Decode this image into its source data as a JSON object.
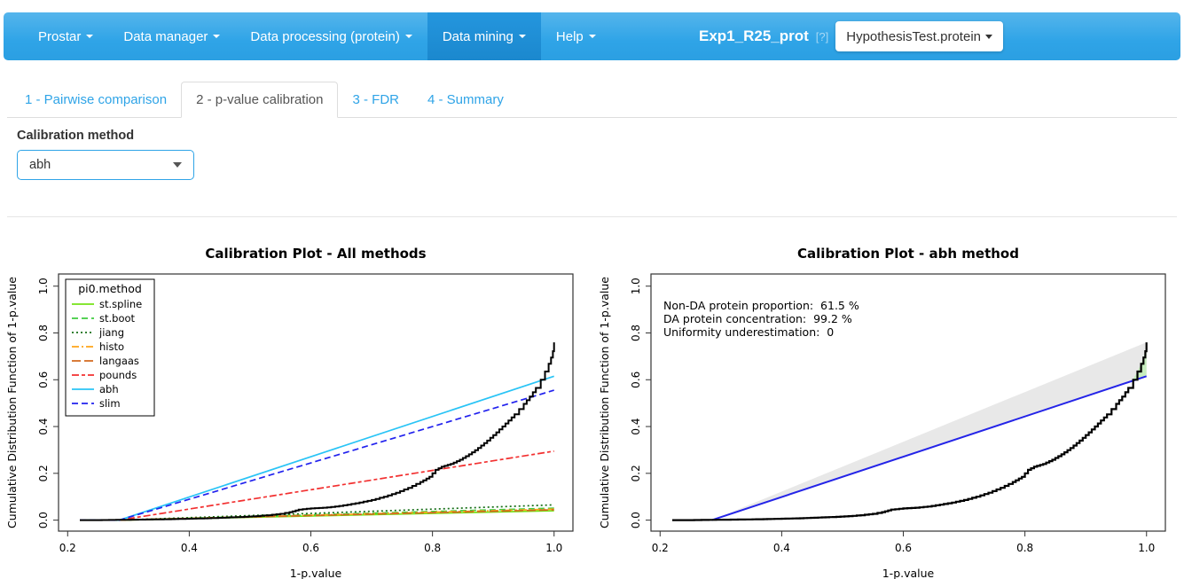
{
  "navbar": {
    "items": [
      {
        "label": "Prostar"
      },
      {
        "label": "Data manager"
      },
      {
        "label": "Data processing (protein)"
      },
      {
        "label": "Data mining"
      },
      {
        "label": "Help"
      }
    ],
    "dataset_label": "Exp1_R25_prot",
    "help_badge": "[?]",
    "doc_selector": "HypothesisTest.protein"
  },
  "tabs": {
    "items": [
      "1 - Pairwise comparison",
      "2 - p-value calibration",
      "3 - FDR",
      "4 - Summary"
    ],
    "active": "2 - p-value calibration"
  },
  "calibration": {
    "label": "Calibration method",
    "value": "abh"
  },
  "colors": {
    "navbar_main": "#2FA4E7",
    "navbar_active": "#1E90D6",
    "link_blue": "#2FA4E7",
    "tab_active_text": "#555555",
    "select_border": "#2FA4E7"
  },
  "chart_data": [
    {
      "type": "line",
      "title": "Calibration Plot - All methods",
      "xlabel": "1-p.value",
      "ylabel": "Cumulative Distribution Function of 1-p.value",
      "xlim": [
        0.2,
        1.0
      ],
      "ylim": [
        0.0,
        1.0
      ],
      "xticks": [
        0.2,
        0.4,
        0.6,
        0.8,
        1.0
      ],
      "yticks": [
        0.0,
        0.2,
        0.4,
        0.6,
        0.8,
        1.0
      ],
      "grid": false,
      "legend": {
        "title": "pi0.method",
        "position": "top-left",
        "entries": [
          {
            "label": "st.spline",
            "color": "#74E317",
            "dash": "solid"
          },
          {
            "label": "st.boot",
            "color": "#3FCC3F",
            "dash": "dashed"
          },
          {
            "label": "jiang",
            "color": "#156E15",
            "dash": "dotted"
          },
          {
            "label": "histo",
            "color": "#FFA519",
            "dash": "dashdot"
          },
          {
            "label": "langaas",
            "color": "#D2691E",
            "dash": "longdash"
          },
          {
            "label": "pounds",
            "color": "#F23030",
            "dash": "twodash"
          },
          {
            "label": "abh",
            "color": "#29C4F6",
            "dash": "solid"
          },
          {
            "label": "slim",
            "color": "#2222EE",
            "dash": "dashed"
          }
        ]
      },
      "series": [
        {
          "name": "st.spline",
          "color": "#74E317",
          "dash": "solid",
          "points": [
            [
              0.22,
              0
            ],
            [
              0.285,
              0
            ],
            [
              1.0,
              0.04
            ]
          ]
        },
        {
          "name": "st.boot",
          "color": "#3FCC3F",
          "dash": "dashed",
          "points": [
            [
              0.22,
              0
            ],
            [
              0.285,
              0
            ],
            [
              1.0,
              0.051
            ]
          ]
        },
        {
          "name": "jiang",
          "color": "#156E15",
          "dash": "dotted",
          "points": [
            [
              0.22,
              0
            ],
            [
              0.285,
              0
            ],
            [
              1.0,
              0.065
            ]
          ]
        },
        {
          "name": "histo",
          "color": "#FFA519",
          "dash": "dashdot",
          "points": [
            [
              0.22,
              0
            ],
            [
              0.285,
              0
            ],
            [
              1.0,
              0.047
            ]
          ]
        },
        {
          "name": "langaas",
          "color": "#D2691E",
          "dash": "longdash",
          "points": [
            [
              0.22,
              0
            ],
            [
              0.285,
              0
            ],
            [
              1.0,
              0.044
            ]
          ]
        },
        {
          "name": "pounds",
          "color": "#F23030",
          "dash": "twodash",
          "points": [
            [
              0.22,
              0
            ],
            [
              0.285,
              0
            ],
            [
              1.0,
              0.295
            ]
          ]
        },
        {
          "name": "abh",
          "color": "#29C4F6",
          "dash": "solid",
          "points": [
            [
              0.22,
              0
            ],
            [
              0.285,
              0
            ],
            [
              1.0,
              0.615
            ]
          ]
        },
        {
          "name": "slim",
          "color": "#2222EE",
          "dash": "dashed",
          "points": [
            [
              0.22,
              0
            ],
            [
              0.285,
              0
            ],
            [
              1.0,
              0.555
            ]
          ]
        },
        {
          "name": "ecdf-1-p.value",
          "color": "#000000",
          "dash": "solid",
          "width": 2,
          "step": true,
          "points": [
            [
              0.22,
              0
            ],
            [
              0.25,
              0
            ],
            [
              0.28,
              0.001
            ],
            [
              0.31,
              0.002
            ],
            [
              0.34,
              0.003
            ],
            [
              0.37,
              0.004
            ],
            [
              0.4,
              0.006
            ],
            [
              0.43,
              0.008
            ],
            [
              0.46,
              0.011
            ],
            [
              0.49,
              0.014
            ],
            [
              0.51,
              0.017
            ],
            [
              0.53,
              0.021
            ],
            [
              0.55,
              0.027
            ],
            [
              0.565,
              0.034
            ],
            [
              0.58,
              0.045
            ],
            [
              0.6,
              0.05
            ],
            [
              0.62,
              0.053
            ],
            [
              0.64,
              0.058
            ],
            [
              0.66,
              0.066
            ],
            [
              0.68,
              0.075
            ],
            [
              0.7,
              0.086
            ],
            [
              0.72,
              0.1
            ],
            [
              0.74,
              0.117
            ],
            [
              0.76,
              0.138
            ],
            [
              0.78,
              0.163
            ],
            [
              0.795,
              0.185
            ],
            [
              0.805,
              0.215
            ],
            [
              0.815,
              0.228
            ],
            [
              0.83,
              0.24
            ],
            [
              0.845,
              0.258
            ],
            [
              0.86,
              0.281
            ],
            [
              0.875,
              0.308
            ],
            [
              0.89,
              0.34
            ],
            [
              0.905,
              0.375
            ],
            [
              0.92,
              0.413
            ],
            [
              0.935,
              0.452
            ],
            [
              0.95,
              0.497
            ],
            [
              0.96,
              0.528
            ],
            [
              0.97,
              0.565
            ],
            [
              0.978,
              0.6
            ],
            [
              0.985,
              0.635
            ],
            [
              0.991,
              0.668
            ],
            [
              0.995,
              0.695
            ],
            [
              0.998,
              0.722
            ],
            [
              1.0,
              0.76
            ]
          ]
        }
      ]
    },
    {
      "type": "line",
      "title": "Calibration Plot - abh method",
      "xlabel": "1-p.value",
      "ylabel": "Cumulative Distribution Function of 1-p.value",
      "xlim": [
        0.2,
        1.0
      ],
      "ylim": [
        0.0,
        1.0
      ],
      "xticks": [
        0.2,
        0.4,
        0.6,
        0.8,
        1.0
      ],
      "yticks": [
        0.0,
        0.2,
        0.4,
        0.6,
        0.8,
        1.0
      ],
      "grid": false,
      "annotations": [
        {
          "text": "Non-DA protein proportion:  61.5 %",
          "color": "#2424DC"
        },
        {
          "text": "DA protein concentration:  99.2 %",
          "color": "#1E8B1E"
        },
        {
          "text": "Uniformity underestimation:  0",
          "color": "#EE2222"
        }
      ],
      "regions": [
        {
          "name": "uniformity-gap-area",
          "color": "#E8E8E8",
          "polygon": [
            [
              0.285,
              0
            ],
            [
              1.0,
              0.76
            ],
            [
              1.0,
              0.617
            ]
          ]
        },
        {
          "name": "da-concentration-area",
          "color": "#C7EDBE",
          "polygon": [
            [
              0.976,
              0.594
            ],
            [
              0.985,
              0.635
            ],
            [
              0.991,
              0.668
            ],
            [
              0.995,
              0.695
            ],
            [
              0.998,
              0.722
            ],
            [
              1.0,
              0.76
            ],
            [
              1.0,
              0.615
            ]
          ]
        }
      ],
      "series": [
        {
          "name": "abh-pi0-line",
          "color": "#2424E8",
          "dash": "solid",
          "width": 2,
          "points": [
            [
              0.285,
              0
            ],
            [
              1.0,
              0.615
            ]
          ]
        },
        {
          "name": "ecdf-1-p.value",
          "color": "#000000",
          "dash": "solid",
          "width": 2.2,
          "step": true,
          "points": [
            [
              0.22,
              0
            ],
            [
              0.25,
              0
            ],
            [
              0.28,
              0.001
            ],
            [
              0.31,
              0.002
            ],
            [
              0.34,
              0.003
            ],
            [
              0.37,
              0.004
            ],
            [
              0.4,
              0.006
            ],
            [
              0.43,
              0.008
            ],
            [
              0.46,
              0.011
            ],
            [
              0.49,
              0.014
            ],
            [
              0.51,
              0.017
            ],
            [
              0.53,
              0.021
            ],
            [
              0.55,
              0.027
            ],
            [
              0.565,
              0.034
            ],
            [
              0.58,
              0.045
            ],
            [
              0.6,
              0.05
            ],
            [
              0.62,
              0.053
            ],
            [
              0.64,
              0.058
            ],
            [
              0.66,
              0.066
            ],
            [
              0.68,
              0.075
            ],
            [
              0.7,
              0.086
            ],
            [
              0.72,
              0.1
            ],
            [
              0.74,
              0.117
            ],
            [
              0.76,
              0.138
            ],
            [
              0.78,
              0.163
            ],
            [
              0.795,
              0.185
            ],
            [
              0.805,
              0.215
            ],
            [
              0.815,
              0.228
            ],
            [
              0.83,
              0.24
            ],
            [
              0.845,
              0.258
            ],
            [
              0.86,
              0.281
            ],
            [
              0.875,
              0.308
            ],
            [
              0.89,
              0.34
            ],
            [
              0.905,
              0.375
            ],
            [
              0.92,
              0.413
            ],
            [
              0.935,
              0.452
            ],
            [
              0.95,
              0.497
            ],
            [
              0.96,
              0.528
            ],
            [
              0.97,
              0.565
            ],
            [
              0.978,
              0.6
            ],
            [
              0.985,
              0.635
            ],
            [
              0.991,
              0.668
            ],
            [
              0.995,
              0.695
            ],
            [
              0.998,
              0.722
            ],
            [
              1.0,
              0.76
            ]
          ]
        }
      ]
    }
  ]
}
